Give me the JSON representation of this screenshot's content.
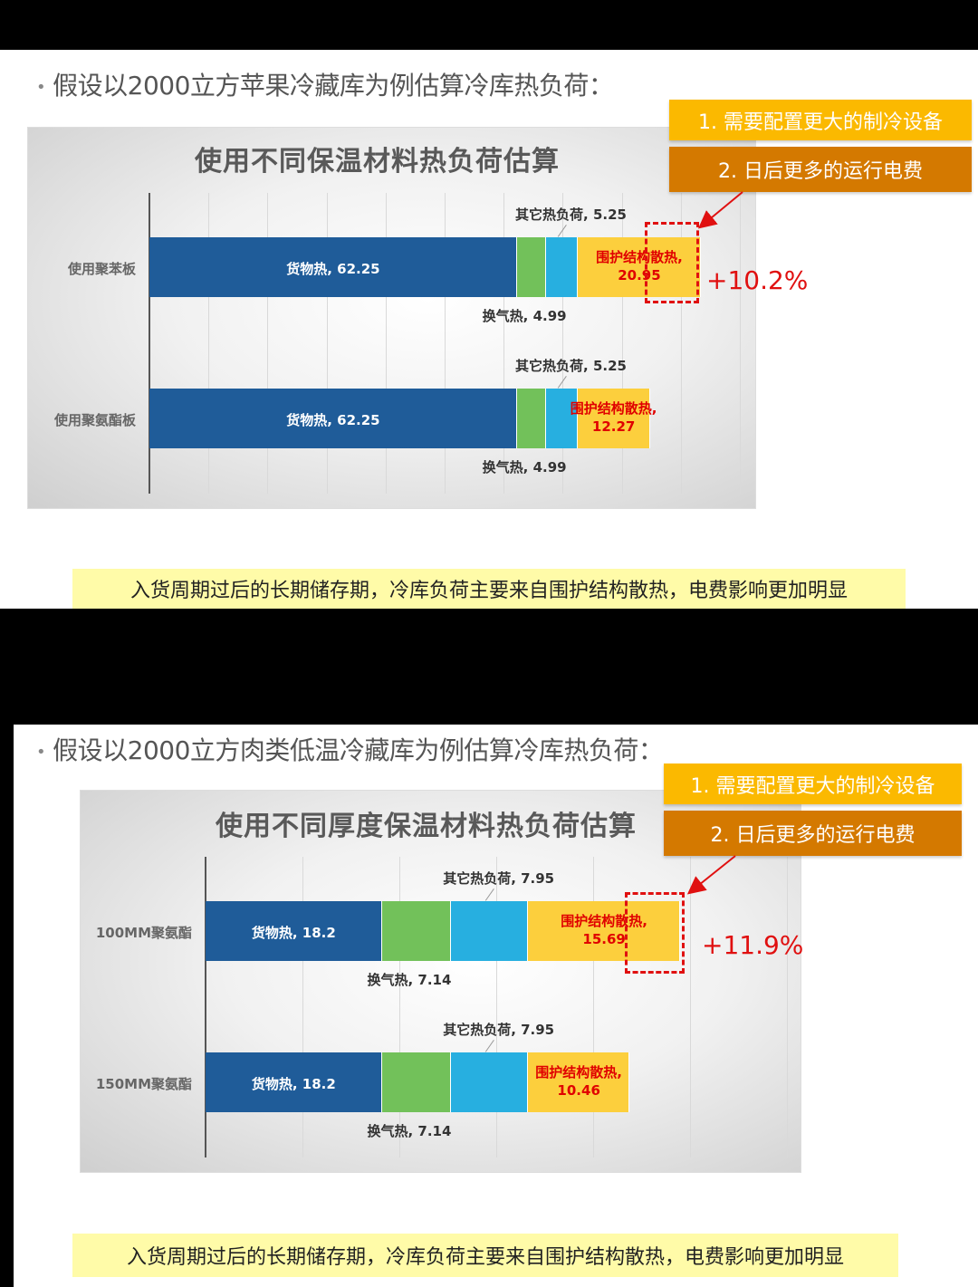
{
  "slides": [
    {
      "heading": "假设以2000立方苹果冷藏库为例估算冷库热负荷：",
      "callouts": [
        "1. 需要配置更大的制冷设备",
        "2. 日后更多的运行电费"
      ],
      "increase": "+10.2%",
      "banner": "入货周期过后的长期储存期，冷库负荷主要来自围护结构散热，电费影响更加明显"
    },
    {
      "heading": "假设以2000立方肉类低温冷藏库为例估算冷库热负荷：",
      "callouts": [
        "1. 需要配置更大的制冷设备",
        "2. 日后更多的运行电费"
      ],
      "increase": "+11.9%",
      "banner": "入货周期过后的长期储存期，冷库负荷主要来自围护结构散热，电费影响更加明显"
    }
  ],
  "colors": {
    "goods": "#1f5c99",
    "ventilation": "#72c15a",
    "other": "#27afe0",
    "enclosure": "#fccf3d",
    "label_red": "#e00000",
    "callout1": "#fbb900",
    "callout2": "#d47900"
  },
  "chart_data": [
    {
      "type": "bar",
      "orientation": "horizontal",
      "stacked": true,
      "title": "使用不同保温材料热负荷估算",
      "categories": [
        "使用聚苯板",
        "使用聚氨酯板"
      ],
      "xlim": [
        0,
        100
      ],
      "grid": true,
      "legend": "none",
      "series": [
        {
          "name": "货物热",
          "values": [
            62.25,
            62.25
          ]
        },
        {
          "name": "换气热",
          "values": [
            4.99,
            4.99
          ]
        },
        {
          "name": "其它热负荷",
          "values": [
            5.25,
            5.25
          ]
        },
        {
          "name": "围护结构散热",
          "values": [
            20.95,
            12.27
          ]
        }
      ],
      "data_labels": [
        {
          "goods": "货物热, 62.25",
          "ventilation": "换气热, 4.99",
          "other": "其它热负荷, 5.25",
          "enclosure_name": "围护结构散热,",
          "enclosure_value": "20.95"
        },
        {
          "goods": "货物热, 62.25",
          "ventilation": "换气热, 4.99",
          "other": "其它热负荷, 5.25",
          "enclosure_name": "围护结构散热,",
          "enclosure_value": "12.27"
        }
      ]
    },
    {
      "type": "bar",
      "orientation": "horizontal",
      "stacked": true,
      "title": "使用不同厚度保温材料热负荷估算",
      "categories": [
        "100MM聚氨酯",
        "150MM聚氨酯"
      ],
      "xlim": [
        0,
        60
      ],
      "grid": true,
      "legend": "none",
      "series": [
        {
          "name": "货物热",
          "values": [
            18.2,
            18.2
          ]
        },
        {
          "name": "换气热",
          "values": [
            7.14,
            7.14
          ]
        },
        {
          "name": "其它热负荷",
          "values": [
            7.95,
            7.95
          ]
        },
        {
          "name": "围护结构散热",
          "values": [
            15.69,
            10.46
          ]
        }
      ],
      "data_labels": [
        {
          "goods": "货物热, 18.2",
          "ventilation": "换气热, 7.14",
          "other": "其它热负荷, 7.95",
          "enclosure_name": "围护结构散热,",
          "enclosure_value": "15.69"
        },
        {
          "goods": "货物热, 18.2",
          "ventilation": "换气热, 7.14",
          "other": "其它热负荷, 7.95",
          "enclosure_name": "围护结构散热,",
          "enclosure_value": "10.46"
        }
      ]
    }
  ]
}
